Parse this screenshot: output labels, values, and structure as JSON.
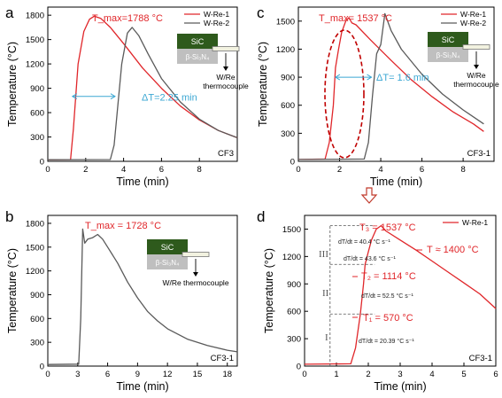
{
  "colors": {
    "red": "#e0262a",
    "gray": "#5a5a5a",
    "blue": "#3ba7d3",
    "dark_red": "#c00000",
    "sic": "#2e5a1c",
    "si3n4": "#bfbfbf",
    "arrow": "#c0392b"
  },
  "panels": [
    {
      "letter": "a",
      "corner": "CF3",
      "legend": [
        "W-Re-1",
        "W-Re-2"
      ],
      "schematic": {
        "sic": "SiC",
        "si3n4": "β-Si₃N₄",
        "tc": [
          "W/Re",
          "thermocouple"
        ]
      }
    },
    {
      "letter": "b",
      "corner": "CF3-1",
      "schematic": {
        "sic": "SiC",
        "si3n4": "β-Si₃N₄",
        "tc": [
          "W/Re thermocouple"
        ]
      }
    },
    {
      "letter": "c",
      "corner": "CF3-1",
      "legend": [
        "W-Re-1",
        "W-Re-2"
      ],
      "schematic": {
        "sic": "SiC",
        "si3n4": "β-Si₃N₄",
        "tc": [
          "W/Re",
          "thermocouple"
        ]
      }
    },
    {
      "letter": "d",
      "corner": "CF3-1",
      "legend": [
        "W-Re-1"
      ],
      "stages": [
        "I",
        "II",
        "III"
      ],
      "rates": [
        "dT/dt = 40.4 °C s⁻¹",
        "dT/dt = 43.6 °C s⁻¹",
        "dT/dt = 52.5 °C s⁻¹",
        "dT/dt = 20.39 °C s⁻¹"
      ],
      "temps": [
        "T₃ = 1537 °C",
        "T₂ = 1114 °C",
        "T₁ = 570 °C"
      ],
      "approx": "T ≈ 1400 °C"
    }
  ],
  "chart_data": [
    {
      "type": "line",
      "panel": "a",
      "xlabel": "Time (min)",
      "ylabel": "Temperature (°C)",
      "xlim": [
        0,
        10
      ],
      "ylim": [
        0,
        1900
      ],
      "xticks": [
        0,
        2,
        4,
        6,
        8
      ],
      "yticks": [
        0,
        300,
        600,
        900,
        1200,
        1500,
        1800
      ],
      "annotations": [
        "T_max=1788 °C",
        "ΔT=2.25 min"
      ],
      "series": [
        {
          "name": "W-Re-1",
          "x": [
            0,
            1.2,
            1.35,
            1.6,
            1.9,
            2.2,
            2.45,
            2.8,
            3.3,
            4,
            5,
            6,
            7,
            8,
            9,
            10
          ],
          "y": [
            20,
            22,
            400,
            1200,
            1600,
            1750,
            1788,
            1760,
            1650,
            1450,
            1150,
            900,
            680,
            510,
            380,
            290
          ]
        },
        {
          "name": "W-Re-2",
          "x": [
            0,
            3.3,
            3.5,
            3.7,
            3.9,
            4.2,
            4.45,
            4.8,
            5.3,
            6,
            7,
            8,
            9,
            10
          ],
          "y": [
            20,
            22,
            200,
            700,
            1200,
            1580,
            1650,
            1550,
            1320,
            1020,
            730,
            520,
            380,
            290
          ]
        }
      ]
    },
    {
      "type": "line",
      "panel": "b",
      "xlabel": "Time (min)",
      "ylabel": "Temperature (°C)",
      "xlim": [
        0,
        19
      ],
      "ylim": [
        0,
        1900
      ],
      "xticks": [
        0,
        3,
        6,
        9,
        12,
        15,
        18
      ],
      "yticks": [
        0,
        300,
        600,
        900,
        1200,
        1500,
        1800
      ],
      "annotations": [
        "T_max = 1728 °C"
      ],
      "series": [
        {
          "name": "",
          "x": [
            0,
            3.1,
            3.3,
            3.5,
            3.7,
            4.0,
            4.5,
            5.0,
            5.5,
            6,
            7,
            8,
            9,
            10,
            11,
            12,
            14,
            16,
            18,
            19
          ],
          "y": [
            20,
            25,
            600,
            1728,
            1550,
            1600,
            1620,
            1660,
            1600,
            1500,
            1300,
            1060,
            860,
            690,
            570,
            470,
            340,
            260,
            200,
            180
          ]
        }
      ]
    },
    {
      "type": "line",
      "panel": "c",
      "xlabel": "Time (min)",
      "ylabel": "Temperature (°C)",
      "xlim": [
        0,
        9.5
      ],
      "ylim": [
        0,
        1650
      ],
      "xticks": [
        0,
        2,
        4,
        6,
        8
      ],
      "yticks": [
        0,
        300,
        600,
        900,
        1200,
        1500
      ],
      "annotations": [
        "T_max= 1537 °C",
        "ΔT= 1.6 min"
      ],
      "series": [
        {
          "name": "W-Re-1",
          "x": [
            0,
            1.3,
            1.5,
            1.7,
            1.8,
            1.95,
            2.1,
            2.3,
            2.45,
            2.6,
            2.8,
            3.5,
            4.5,
            5.5,
            6.5,
            7.5,
            8.5,
            9
          ],
          "y": [
            20,
            25,
            200,
            600,
            1000,
            1200,
            1380,
            1500,
            1537,
            1480,
            1460,
            1300,
            1080,
            870,
            690,
            530,
            400,
            320
          ]
        },
        {
          "name": "W-Re-2",
          "x": [
            0,
            3.2,
            3.4,
            3.6,
            3.8,
            4.0,
            4.2,
            4.5,
            5,
            6,
            7,
            8,
            9
          ],
          "y": [
            20,
            25,
            200,
            700,
            1150,
            1250,
            1580,
            1400,
            1200,
            930,
            720,
            550,
            400
          ]
        }
      ]
    },
    {
      "type": "line",
      "panel": "d",
      "xlabel": "Time (min)",
      "ylabel": "Temperature (°C)",
      "xlim": [
        0,
        6
      ],
      "ylim": [
        0,
        1650
      ],
      "xticks": [
        0,
        1,
        2,
        3,
        4,
        5,
        6
      ],
      "yticks": [
        0,
        300,
        600,
        900,
        1200,
        1500
      ],
      "series": [
        {
          "name": "W-Re-1",
          "x": [
            0,
            1.45,
            1.6,
            1.75,
            1.85,
            1.9,
            2.0,
            2.1,
            2.25,
            2.4,
            2.55,
            3,
            3.5,
            4,
            4.5,
            5,
            5.5,
            6
          ],
          "y": [
            20,
            25,
            200,
            570,
            900,
            1114,
            1250,
            1380,
            1500,
            1537,
            1480,
            1380,
            1270,
            1150,
            1030,
            910,
            790,
            630
          ]
        }
      ]
    }
  ]
}
